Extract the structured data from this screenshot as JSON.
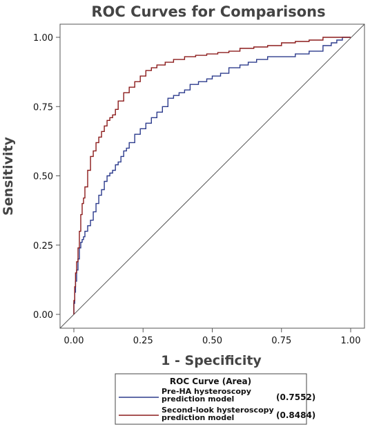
{
  "chart_data": {
    "type": "line",
    "title": "ROC Curves for Comparisons",
    "xlabel": "1 - Specificity",
    "ylabel": "Sensitivity",
    "xlim": [
      0,
      1
    ],
    "ylim": [
      0,
      1
    ],
    "x_ticks": [
      "0.00",
      "0.25",
      "0.50",
      "0.75",
      "1.00"
    ],
    "y_ticks": [
      "0.00",
      "0.25",
      "0.50",
      "0.75",
      "1.00"
    ],
    "grid": false,
    "legend": {
      "title": "ROC Curve (Area)",
      "position": "bottom",
      "entries": [
        {
          "line1": "Pre-HA  hysteroscopy",
          "line2": "prediction model",
          "value": "(0.7552)"
        },
        {
          "line1": "Second-look  hysteroscopy",
          "line2": "prediction model",
          "value": "(0.8484)"
        }
      ]
    },
    "colors": {
      "series1": "#2b3a8c",
      "series2": "#8b1a1a",
      "diagonal": "#555555"
    },
    "series": [
      {
        "x": [
          0.0,
          0.003,
          0.006,
          0.01,
          0.015,
          0.02,
          0.025,
          0.03,
          0.035,
          0.04,
          0.05,
          0.06,
          0.07,
          0.08,
          0.09,
          0.1,
          0.11,
          0.12,
          0.13,
          0.14,
          0.15,
          0.16,
          0.17,
          0.18,
          0.19,
          0.2,
          0.22,
          0.24,
          0.26,
          0.28,
          0.3,
          0.32,
          0.34,
          0.36,
          0.38,
          0.4,
          0.42,
          0.45,
          0.48,
          0.5,
          0.53,
          0.56,
          0.6,
          0.63,
          0.66,
          0.7,
          0.75,
          0.8,
          0.85,
          0.9,
          0.93,
          0.95,
          0.97,
          1.0
        ],
        "y": [
          0.0,
          0.04,
          0.08,
          0.12,
          0.16,
          0.2,
          0.24,
          0.26,
          0.27,
          0.28,
          0.3,
          0.32,
          0.34,
          0.37,
          0.4,
          0.43,
          0.45,
          0.48,
          0.5,
          0.51,
          0.52,
          0.54,
          0.55,
          0.57,
          0.59,
          0.6,
          0.62,
          0.65,
          0.67,
          0.69,
          0.71,
          0.73,
          0.75,
          0.78,
          0.79,
          0.8,
          0.81,
          0.83,
          0.84,
          0.85,
          0.86,
          0.87,
          0.89,
          0.9,
          0.91,
          0.92,
          0.93,
          0.93,
          0.94,
          0.95,
          0.97,
          0.98,
          0.99,
          1.0
        ]
      },
      {
        "x": [
          0.0,
          0.003,
          0.006,
          0.01,
          0.015,
          0.02,
          0.025,
          0.03,
          0.035,
          0.04,
          0.05,
          0.06,
          0.07,
          0.08,
          0.09,
          0.1,
          0.11,
          0.12,
          0.13,
          0.14,
          0.15,
          0.16,
          0.18,
          0.2,
          0.22,
          0.24,
          0.26,
          0.28,
          0.3,
          0.33,
          0.36,
          0.4,
          0.44,
          0.48,
          0.52,
          0.56,
          0.6,
          0.65,
          0.7,
          0.75,
          0.8,
          0.85,
          0.9,
          0.95,
          1.0
        ],
        "y": [
          0.0,
          0.05,
          0.1,
          0.15,
          0.19,
          0.24,
          0.3,
          0.36,
          0.4,
          0.42,
          0.46,
          0.52,
          0.57,
          0.59,
          0.62,
          0.64,
          0.66,
          0.68,
          0.7,
          0.71,
          0.72,
          0.74,
          0.77,
          0.8,
          0.82,
          0.84,
          0.86,
          0.88,
          0.89,
          0.9,
          0.91,
          0.92,
          0.93,
          0.935,
          0.94,
          0.945,
          0.95,
          0.96,
          0.965,
          0.97,
          0.98,
          0.985,
          0.99,
          1.0,
          1.0
        ]
      }
    ]
  }
}
